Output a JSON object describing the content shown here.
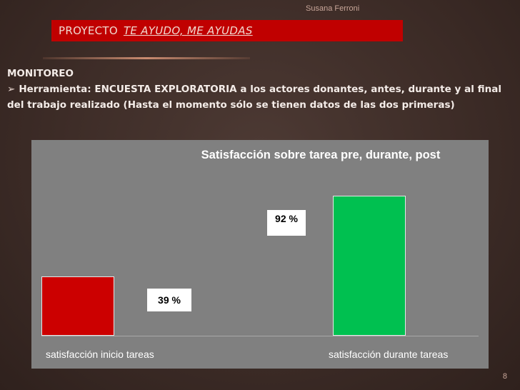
{
  "slide": {
    "author": "Susana Ferroni",
    "title_prefix": "PROYECTO",
    "title_subtitle": "TE AYUDO, ME AYUDAS",
    "heading": "MONITOREO",
    "bullet_text": "Herramienta: ENCUESTA EXPLORATORIA a los actores donantes, antes, durante y al final del trabajo realizado (Hasta el momento sólo se tienen datos de las dos primeras)",
    "page_number": "8"
  },
  "colors": {
    "title_bar": "#c00000",
    "chart_background": "#808080"
  },
  "chart_data": {
    "type": "bar",
    "title": "Satisfacción sobre tarea pre, durante, post",
    "categories": [
      "satisfacción inicio tareas",
      "satisfacción durante tareas"
    ],
    "values": [
      39,
      92
    ],
    "data_labels": [
      "39 %",
      "92 %"
    ],
    "colors": [
      "#cc0000",
      "#00c050"
    ],
    "ylim": [
      0,
      100
    ],
    "grid": false,
    "legend": "none"
  }
}
